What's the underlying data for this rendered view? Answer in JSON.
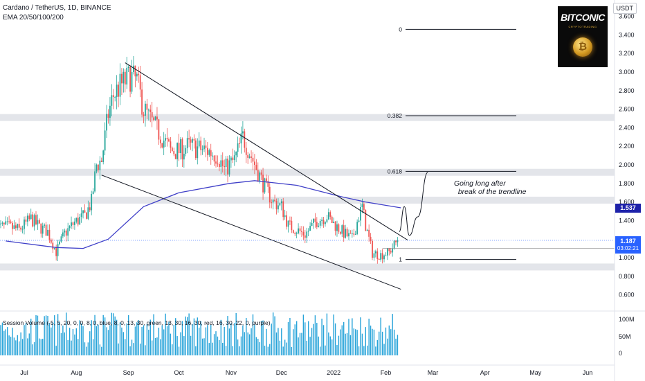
{
  "header": {
    "title": "Cardano / TetherUS, 1D, BINANCE",
    "ema": "EMA 20/50/100/200"
  },
  "currency": "USDT",
  "logo": {
    "text": "BITCONIC",
    "sub": "CRYPTOTRADING",
    "coin_symbol": "₿"
  },
  "volume_label": "Session Volume (-5, 5, 20, 0, 0, 8, 0, blue, 8, 0, 13, 30, green, 13, 30, 16, 30, red, 16, 30, 22, 0, purple)",
  "annotation": "Going long after\n  break of the trendline",
  "price_tags": {
    "ema": "1.537",
    "price": "1.187",
    "timer": "03:02:21"
  },
  "colors": {
    "up": "#26a69a",
    "down": "#ef5350",
    "ema": "#3f3fc8",
    "volume": "#26a3d9",
    "zone": "#e3e5ea",
    "trendline": "#131722",
    "price_line": "#2962ff"
  },
  "chart_data": {
    "type": "candlestick",
    "symbol": "ADA/USDT",
    "interval": "1D",
    "exchange": "BINANCE",
    "x_axis": {
      "labels": [
        "Jul",
        "Aug",
        "Sep",
        "Oct",
        "Nov",
        "Dec",
        "2022",
        "Feb",
        "Mar",
        "Apr",
        "May",
        "Jun"
      ]
    },
    "y_axis": {
      "labels": [
        "3.600",
        "3.400",
        "3.200",
        "3.000",
        "2.800",
        "2.600",
        "2.400",
        "2.200",
        "2.000",
        "1.800",
        "1.600",
        "1.400",
        "1.200",
        "1.000",
        "0.800",
        "0.600"
      ],
      "range": [
        0.45,
        3.65
      ]
    },
    "volume_axis": {
      "labels": [
        "100M",
        "50M",
        "0"
      ]
    },
    "price_path": [
      [
        "2021-06-22",
        1.33
      ],
      [
        "2021-06-28",
        1.3
      ],
      [
        "2021-07-05",
        1.42
      ],
      [
        "2021-07-10",
        1.33
      ],
      [
        "2021-07-15",
        1.28
      ],
      [
        "2021-07-20",
        1.06
      ],
      [
        "2021-07-25",
        1.26
      ],
      [
        "2021-07-31",
        1.38
      ],
      [
        "2021-08-06",
        1.45
      ],
      [
        "2021-08-10",
        1.6
      ],
      [
        "2021-08-13",
        2.0
      ],
      [
        "2021-08-16",
        2.05
      ],
      [
        "2021-08-20",
        2.55
      ],
      [
        "2021-08-23",
        2.75
      ],
      [
        "2021-08-27",
        2.85
      ],
      [
        "2021-09-02",
        2.95
      ],
      [
        "2021-09-06",
        2.9
      ],
      [
        "2021-09-10",
        2.6
      ],
      [
        "2021-09-15",
        2.45
      ],
      [
        "2021-09-21",
        2.3
      ],
      [
        "2021-09-26",
        2.15
      ],
      [
        "2021-10-01",
        2.15
      ],
      [
        "2021-10-06",
        2.2
      ],
      [
        "2021-10-12",
        2.18
      ],
      [
        "2021-10-18",
        2.15
      ],
      [
        "2021-10-24",
        2.1
      ],
      [
        "2021-10-28",
        1.95
      ],
      [
        "2021-11-03",
        2.05
      ],
      [
        "2021-11-08",
        2.3
      ],
      [
        "2021-11-14",
        2.05
      ],
      [
        "2021-11-20",
        1.8
      ],
      [
        "2021-11-26",
        1.6
      ],
      [
        "2021-12-01",
        1.55
      ],
      [
        "2021-12-05",
        1.35
      ],
      [
        "2021-12-10",
        1.3
      ],
      [
        "2021-12-15",
        1.25
      ],
      [
        "2021-12-22",
        1.4
      ],
      [
        "2021-12-28",
        1.45
      ],
      [
        "2022-01-02",
        1.35
      ],
      [
        "2022-01-08",
        1.25
      ],
      [
        "2022-01-12",
        1.2
      ],
      [
        "2022-01-16",
        1.45
      ],
      [
        "2022-01-18",
        1.55
      ],
      [
        "2022-01-20",
        1.35
      ],
      [
        "2022-01-24",
        1.05
      ],
      [
        "2022-01-29",
        1.03
      ],
      [
        "2022-02-03",
        1.06
      ],
      [
        "2022-02-08",
        1.187
      ]
    ],
    "ema_200_path": [
      [
        "2021-06-20",
        1.18
      ],
      [
        "2021-07-20",
        1.11
      ],
      [
        "2021-08-05",
        1.1
      ],
      [
        "2021-08-20",
        1.2
      ],
      [
        "2021-09-10",
        1.55
      ],
      [
        "2021-10-01",
        1.7
      ],
      [
        "2021-10-31",
        1.8
      ],
      [
        "2021-11-15",
        1.83
      ],
      [
        "2021-12-10",
        1.78
      ],
      [
        "2022-01-05",
        1.66
      ],
      [
        "2022-01-20",
        1.6
      ],
      [
        "2022-02-10",
        1.537
      ]
    ],
    "trendlines": [
      {
        "from": [
          "2021-08-30",
          3.1
        ],
        "to": [
          "2022-02-14",
          1.19
        ]
      },
      {
        "from": [
          "2021-08-16",
          1.89
        ],
        "to": [
          "2022-02-10",
          0.66
        ]
      }
    ],
    "horizontal_zones": [
      2.51,
      1.92,
      1.62,
      0.9
    ],
    "fibonacci": [
      {
        "label": "0",
        "level": 3.46
      },
      {
        "label": "0.382",
        "level": 2.53
      },
      {
        "label": "0.618",
        "level": 1.93
      },
      {
        "label": "1",
        "level": 0.98
      }
    ],
    "forecast_path": [
      [
        "2022-02-09",
        1.28
      ],
      [
        "2022-02-12",
        1.55
      ],
      [
        "2022-02-15",
        1.24
      ],
      [
        "2022-02-20",
        1.44
      ],
      [
        "2022-02-26",
        1.92
      ]
    ],
    "last_price": 1.187,
    "ema_value": 1.537
  }
}
